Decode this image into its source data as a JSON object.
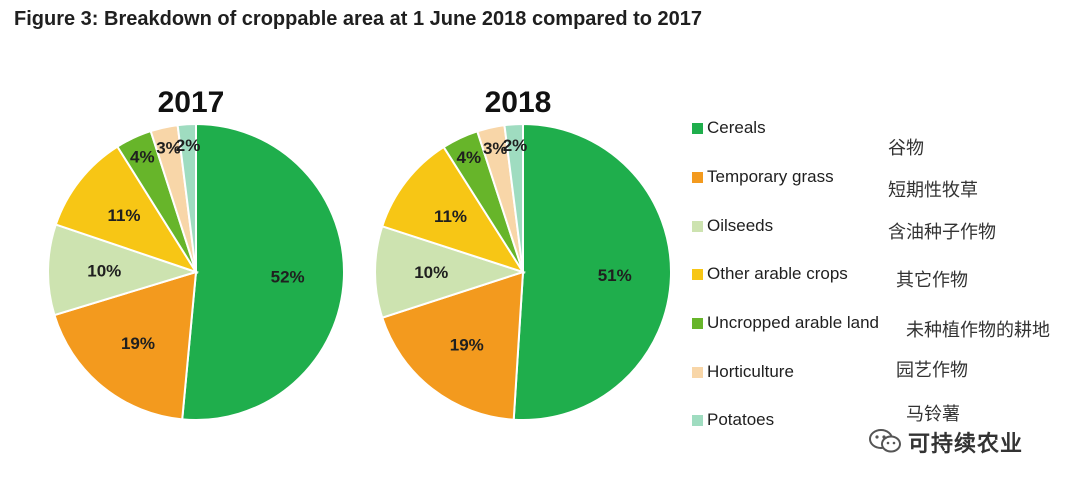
{
  "figure_title": "Figure 3: Breakdown of croppable area at 1 June 2018 compared to 2017",
  "colors": {
    "Cereals": "#1fae4c",
    "Temporary grass": "#f39a1e",
    "Oilseeds": "#cde3b0",
    "Other arable crops": "#f7c615",
    "Uncropped arable land": "#67b52a",
    "Horticulture": "#f8d6a8",
    "Potatoes": "#9fdcc0"
  },
  "legend": [
    {
      "label": "Cereals",
      "cn": "谷物"
    },
    {
      "label": "Temporary grass",
      "cn": "短期性牧草"
    },
    {
      "label": "Oilseeds",
      "cn": "含油种子作物"
    },
    {
      "label": "Other arable crops",
      "cn": "其它作物"
    },
    {
      "label": "Uncropped arable land",
      "cn": "未种植作物的耕地"
    },
    {
      "label": "Horticulture",
      "cn": "园艺作物"
    },
    {
      "label": "Potatoes",
      "cn": "马铃薯"
    }
  ],
  "chart_data": [
    {
      "type": "pie",
      "title": "2017",
      "slices": [
        {
          "label": "Cereals",
          "value": 52,
          "display": "52%"
        },
        {
          "label": "Temporary grass",
          "value": 19,
          "display": "19%"
        },
        {
          "label": "Oilseeds",
          "value": 10,
          "display": "10%"
        },
        {
          "label": "Other arable crops",
          "value": 11,
          "display": "11%"
        },
        {
          "label": "Uncropped arable land",
          "value": 4,
          "display": "4%"
        },
        {
          "label": "Horticulture",
          "value": 3,
          "display": "3%"
        },
        {
          "label": "Potatoes",
          "value": 2,
          "display": "2%"
        }
      ]
    },
    {
      "type": "pie",
      "title": "2018",
      "slices": [
        {
          "label": "Cereals",
          "value": 51,
          "display": "51%"
        },
        {
          "label": "Temporary grass",
          "value": 19,
          "display": "19%"
        },
        {
          "label": "Oilseeds",
          "value": 10,
          "display": "10%"
        },
        {
          "label": "Other arable crops",
          "value": 11,
          "display": "11%"
        },
        {
          "label": "Uncropped arable land",
          "value": 4,
          "display": "4%"
        },
        {
          "label": "Horticulture",
          "value": 3,
          "display": "3%"
        },
        {
          "label": "Potatoes",
          "value": 2,
          "display": "2%"
        }
      ]
    }
  ],
  "watermark": {
    "text": "可持续农业",
    "icon": "wechat-logo-icon"
  }
}
